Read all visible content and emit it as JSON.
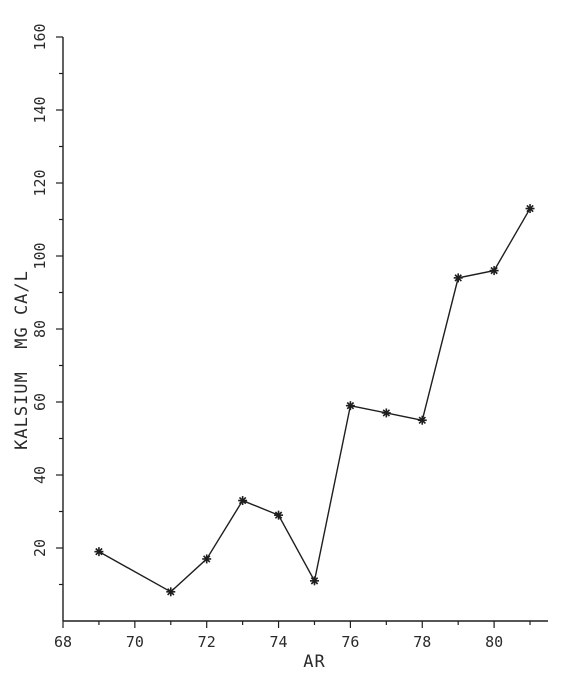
{
  "chart_data": {
    "type": "line",
    "title": "",
    "xlabel": "AR",
    "ylabel": "KALSIUM  MG CA/L",
    "xlim": [
      68,
      81.5
    ],
    "ylim": [
      0,
      160
    ],
    "xticks": [
      68,
      70,
      72,
      74,
      76,
      78,
      80
    ],
    "yticks_labeled": [
      20,
      40,
      60,
      80,
      100,
      120,
      140,
      160
    ],
    "grid": false,
    "legend": "none",
    "marker": "asterisk",
    "series": [
      {
        "x": [
          69,
          71,
          72,
          73,
          74,
          75,
          76,
          77,
          78,
          79,
          80,
          81
        ],
        "values": [
          19,
          8,
          17,
          33,
          29,
          11,
          59,
          57,
          55,
          94,
          96,
          113
        ]
      }
    ]
  }
}
